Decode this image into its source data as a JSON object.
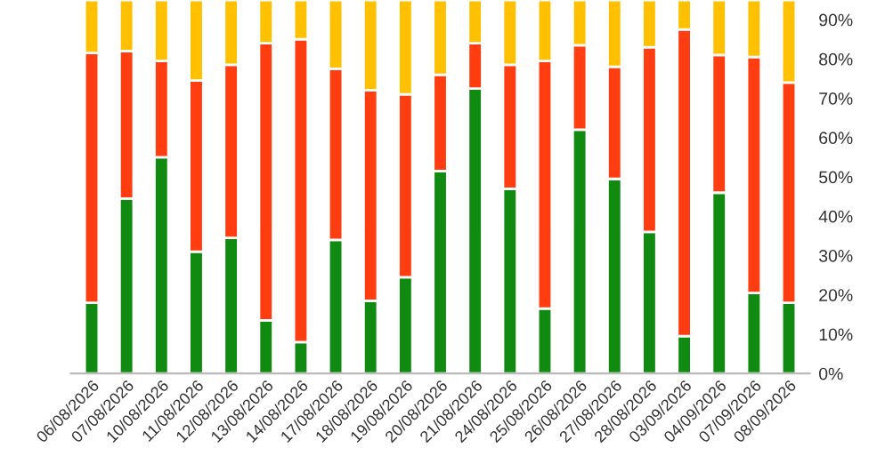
{
  "chart_data": {
    "type": "bar",
    "stacked": true,
    "categories": [
      "06/08/2026",
      "07/08/2026",
      "10/08/2026",
      "11/08/2026",
      "12/08/2026",
      "13/08/2026",
      "14/08/2026",
      "17/08/2026",
      "18/08/2026",
      "19/08/2026",
      "20/08/2026",
      "21/08/2026",
      "24/08/2026",
      "25/08/2026",
      "26/08/2026",
      "27/08/2026",
      "28/08/2026",
      "03/09/2026",
      "04/09/2026",
      "07/09/2026",
      "08/09/2026"
    ],
    "series": [
      {
        "color": "#118a11",
        "values": [
          18,
          44.5,
          55,
          31,
          34.5,
          13.5,
          8,
          34,
          18.5,
          24.5,
          51.5,
          72.5,
          47,
          16.5,
          62,
          49.5,
          36,
          9.5,
          46,
          20.5,
          18
        ]
      },
      {
        "color": "#ff3d11",
        "values": [
          63.5,
          37.5,
          24.5,
          43.5,
          44,
          70.5,
          77,
          43.5,
          53.5,
          46.5,
          24.5,
          11.5,
          31.5,
          63,
          21.5,
          28.5,
          47,
          78,
          35,
          60,
          56
        ]
      },
      {
        "color": "#ffc000",
        "values": [
          13.5,
          13,
          15.5,
          20.5,
          16.5,
          11,
          10,
          17.5,
          23,
          24,
          19,
          11,
          16.5,
          15.5,
          11.5,
          17,
          12,
          7.5,
          14,
          14.5,
          21
        ]
      }
    ],
    "ylim": [
      0,
      95
    ],
    "yticks": [
      {
        "value": 0,
        "label": "0%"
      },
      {
        "value": 10,
        "label": "10%"
      },
      {
        "value": 20,
        "label": "20%"
      },
      {
        "value": 30,
        "label": "30%"
      },
      {
        "value": 40,
        "label": "40%"
      },
      {
        "value": 50,
        "label": "50%"
      },
      {
        "value": 60,
        "label": "60%"
      },
      {
        "value": 70,
        "label": "70%"
      },
      {
        "value": 80,
        "label": "80%"
      },
      {
        "value": 90,
        "label": "90%"
      }
    ],
    "grid": false,
    "legend": false
  }
}
